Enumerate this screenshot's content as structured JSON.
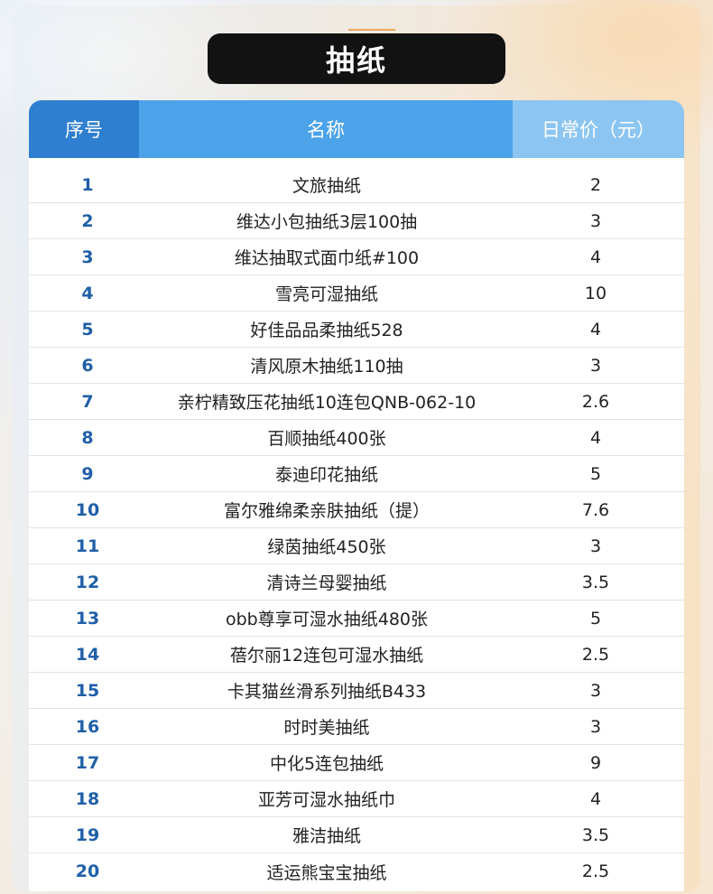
{
  "title": "抽纸",
  "table": {
    "headers": {
      "seq": "序号",
      "name": "名称",
      "price": "日常价（元）"
    },
    "rows": [
      {
        "seq": "1",
        "name": "文旅抽纸",
        "price": "2"
      },
      {
        "seq": "2",
        "name": "维达小包抽纸3层100抽",
        "price": "3"
      },
      {
        "seq": "3",
        "name": "维达抽取式面巾纸#100",
        "price": "4"
      },
      {
        "seq": "4",
        "name": "雪亮可湿抽纸",
        "price": "10"
      },
      {
        "seq": "5",
        "name": "好佳品品柔抽纸528",
        "price": "4"
      },
      {
        "seq": "6",
        "name": "清风原木抽纸110抽",
        "price": "3"
      },
      {
        "seq": "7",
        "name": "亲柠精致压花抽纸10连包QNB-062-10",
        "price": "2.6"
      },
      {
        "seq": "8",
        "name": "百顺抽纸400张",
        "price": "4"
      },
      {
        "seq": "9",
        "name": "泰迪印花抽纸",
        "price": "5"
      },
      {
        "seq": "10",
        "name": "富尔雅绵柔亲肤抽纸（提）",
        "price": "7.6"
      },
      {
        "seq": "11",
        "name": "绿茵抽纸450张",
        "price": "3"
      },
      {
        "seq": "12",
        "name": "清诗兰母婴抽纸",
        "price": "3.5"
      },
      {
        "seq": "13",
        "name": "obb尊享可湿水抽纸480张",
        "price": "5"
      },
      {
        "seq": "14",
        "name": "蓓尔丽12连包可湿水抽纸",
        "price": "2.5"
      },
      {
        "seq": "15",
        "name": "卡其猫丝滑系列抽纸B433",
        "price": "3"
      },
      {
        "seq": "16",
        "name": "时时美抽纸",
        "price": "3"
      },
      {
        "seq": "17",
        "name": "中化5连包抽纸",
        "price": "9"
      },
      {
        "seq": "18",
        "name": "亚芳可湿水抽纸巾",
        "price": "4"
      },
      {
        "seq": "19",
        "name": "雅洁抽纸",
        "price": "3.5"
      },
      {
        "seq": "20",
        "name": "适运熊宝宝抽纸",
        "price": "2.5"
      }
    ]
  }
}
